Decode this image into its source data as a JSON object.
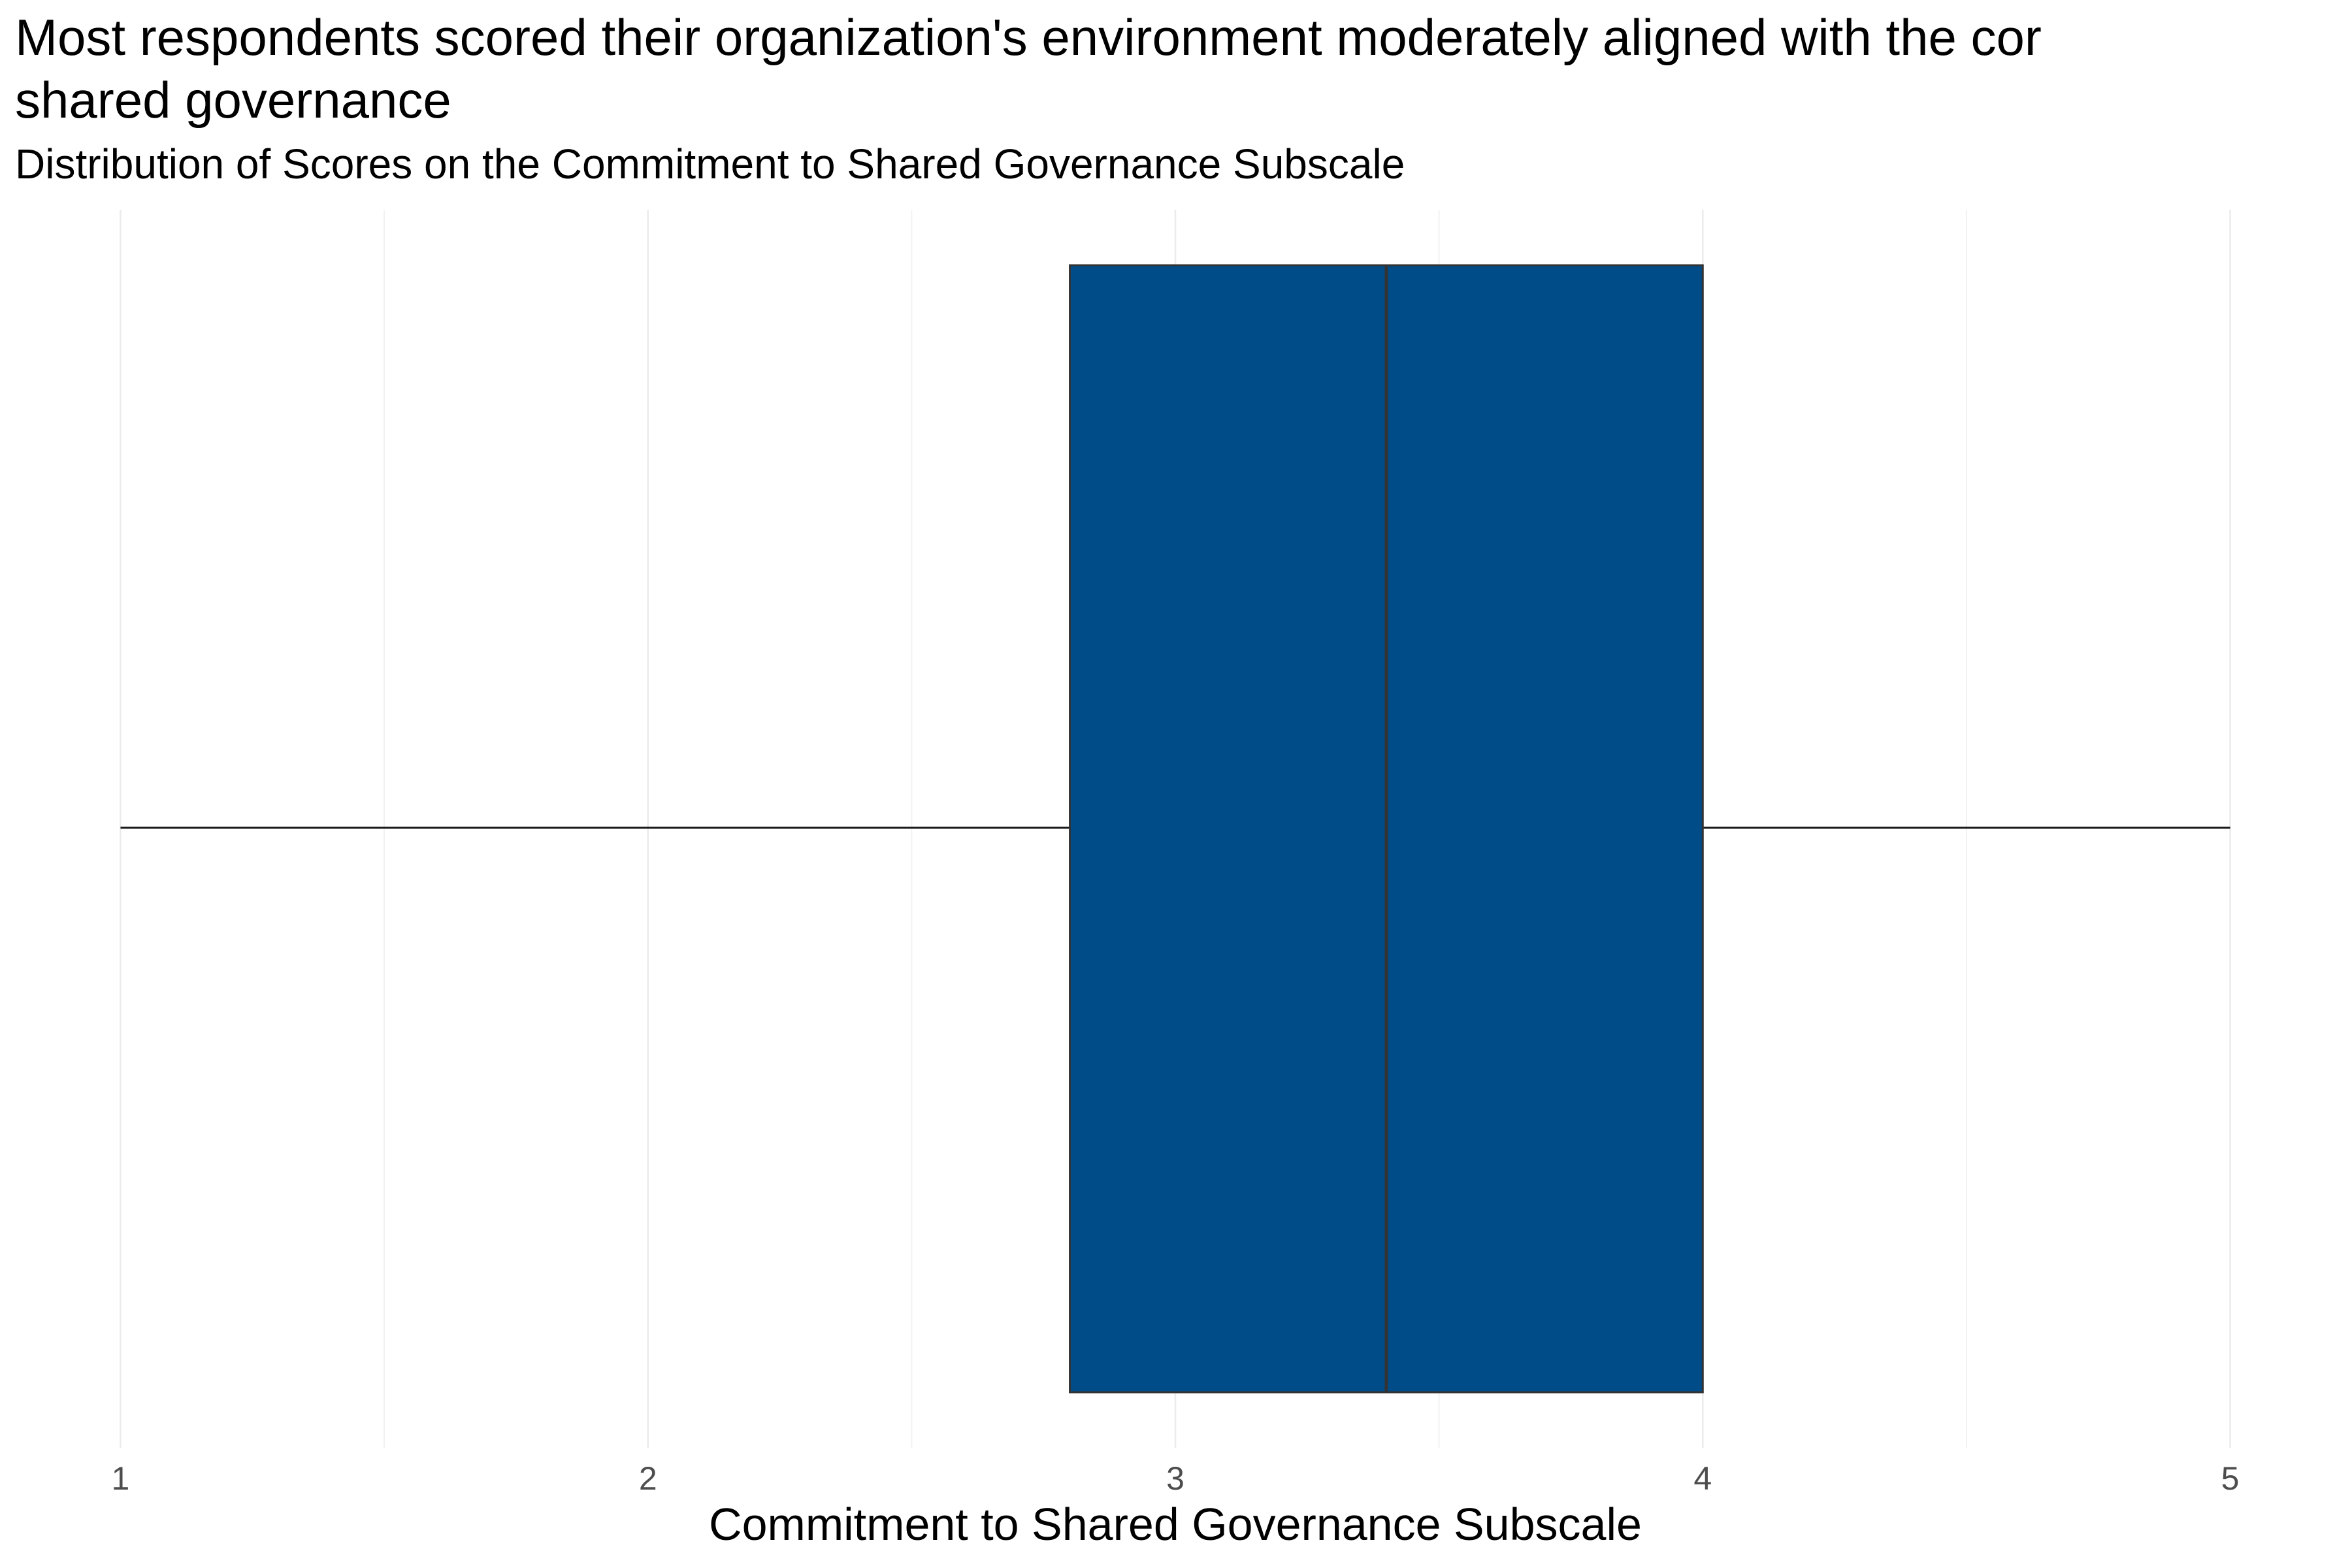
{
  "chart_data": {
    "type": "box",
    "title": [
      "Most respondents scored their organization's environment moderately aligned with the cor",
      "shared governance"
    ],
    "subtitle": "Distribution of Scores on the Commitment to Shared Governance Subscale",
    "x_label": "Commitment to Shared Governance Subscale",
    "boxes": [
      {
        "min": 1,
        "q1": 2.8,
        "median": 3.4,
        "q3": 4,
        "max": 5,
        "color": "#004c88"
      }
    ],
    "xlim": [
      0.8,
      5.2
    ],
    "xticks": [
      1,
      2,
      3,
      4,
      5
    ],
    "xminor": [
      1.5,
      2.5,
      3.5,
      4.5
    ],
    "grid": true
  }
}
